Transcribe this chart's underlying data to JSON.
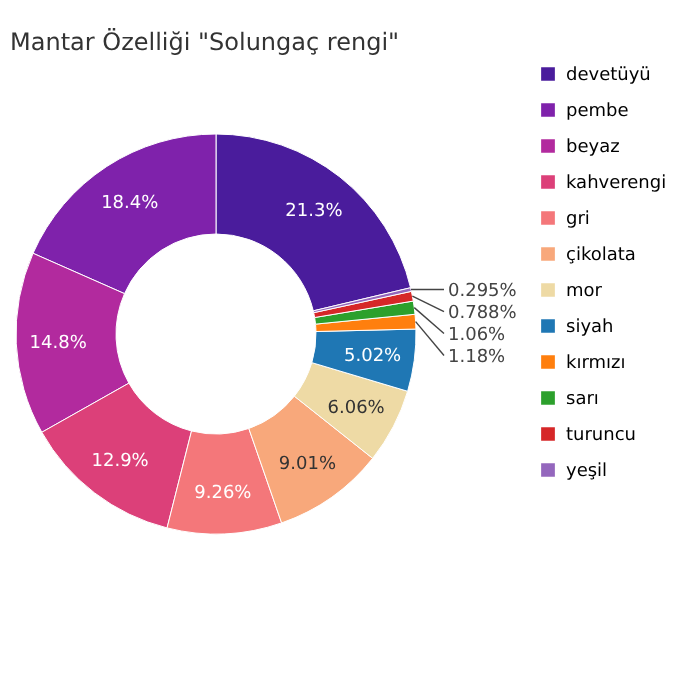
{
  "chart_data": {
    "type": "donut",
    "title": "Mantar Özelliği \"Solungaç rengi\"",
    "categories": [
      "devetüyü",
      "pembe",
      "beyaz",
      "kahverengi",
      "gri",
      "çikolata",
      "mor",
      "siyah",
      "kırmızı",
      "sarı",
      "turuncu",
      "yeşil"
    ],
    "values": [
      21.3,
      18.4,
      14.8,
      12.9,
      9.26,
      9.01,
      6.06,
      5.02,
      1.18,
      1.06,
      0.788,
      0.295
    ],
    "colors": [
      "#4a1c9c",
      "#7f22ab",
      "#b22a9e",
      "#dc4079",
      "#f4777a",
      "#f8a87b",
      "#eedaa5",
      "#1f77b4",
      "#ff7f0e",
      "#2ca02c",
      "#d62728",
      "#9467bd"
    ],
    "value_labels": [
      "21.3%",
      "18.4%",
      "14.8%",
      "12.9%",
      "9.26%",
      "9.01%",
      "6.06%",
      "5.02%",
      "1.18%",
      "1.06%",
      "0.788%",
      "0.295%"
    ],
    "legend": "right"
  }
}
